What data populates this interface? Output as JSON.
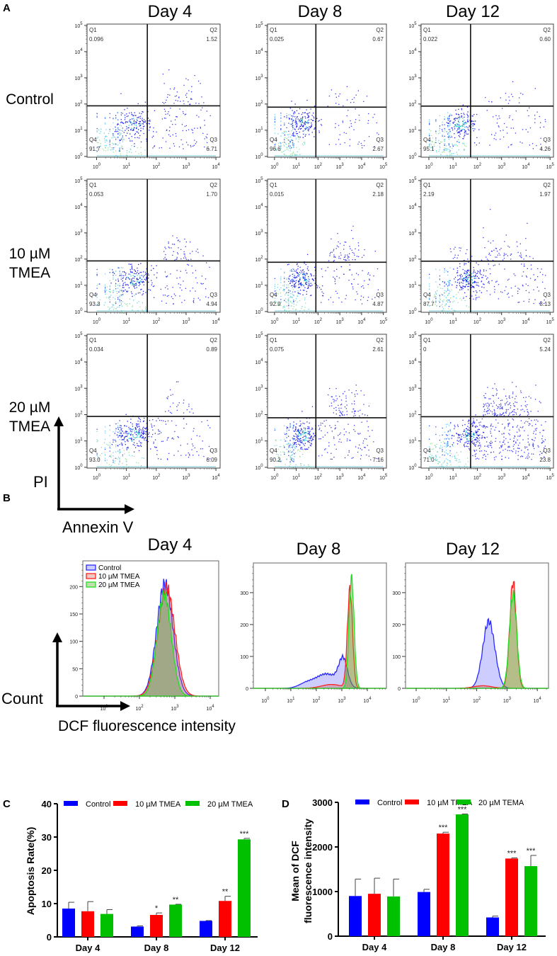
{
  "panels": {
    "A": "A",
    "B": "B",
    "C": "C",
    "D": "D"
  },
  "chart_data": [
    {
      "type": "scatter",
      "panel": "A",
      "days": [
        "Day 4",
        "Day 8",
        "Day 12"
      ],
      "row_labels": [
        [
          "Control"
        ],
        [
          "10 µM",
          "TMEA"
        ],
        [
          "20 µM",
          "TMEA"
        ]
      ],
      "xlabel": "Annexin V",
      "ylabel": "PI",
      "tick_base": "10",
      "y_tick_exponents": [
        "0",
        "1",
        "2",
        "3",
        "4",
        "5"
      ],
      "x_tick_exponents_by_day": [
        [
          "0",
          "1",
          "2",
          "3",
          "4"
        ],
        [
          "0",
          "1",
          "2",
          "3",
          "4",
          "5"
        ],
        [
          "0",
          "1",
          "2",
          "3",
          "4",
          "5"
        ]
      ],
      "quadrant_names": {
        "Q1": "Q1",
        "Q2": "Q2",
        "Q3": "Q3",
        "Q4": "Q4"
      },
      "gate_log10": [
        [
          1.7,
          1.93
        ],
        [
          1.9,
          1.88
        ],
        [
          1.72,
          1.92
        ]
      ],
      "plots": [
        {
          "day": "Day 4",
          "group": "Control",
          "Q1": "0.096",
          "Q2": "1.52",
          "Q3": "6.71",
          "Q4": "91.7"
        },
        {
          "day": "Day 8",
          "group": "Control",
          "Q1": "0.025",
          "Q2": "0.67",
          "Q3": "2.67",
          "Q4": "96.6"
        },
        {
          "day": "Day 12",
          "group": "Control",
          "Q1": "0.022",
          "Q2": "0.60",
          "Q3": "4.26",
          "Q4": "95.1"
        },
        {
          "day": "Day 4",
          "group": "10 µM TMEA",
          "Q1": "0.053",
          "Q2": "1.70",
          "Q3": "4.94",
          "Q4": "93.3"
        },
        {
          "day": "Day 8",
          "group": "10 µM TMEA",
          "Q1": "0.015",
          "Q2": "2.18",
          "Q3": "4.87",
          "Q4": "92.9"
        },
        {
          "day": "Day 12",
          "group": "10 µM TMEA",
          "Q1": "2.19",
          "Q2": "1.97",
          "Q3": "8.13",
          "Q4": "87.7"
        },
        {
          "day": "Day 4",
          "group": "20 µM TMEA",
          "Q1": "0.034",
          "Q2": "0.89",
          "Q3": "6.09",
          "Q4": "93.0"
        },
        {
          "day": "Day 8",
          "group": "20 µM TMEA",
          "Q1": "0.075",
          "Q2": "2.61",
          "Q3": "7.16",
          "Q4": "90.2"
        },
        {
          "day": "Day 12",
          "group": "20 µM TMEA",
          "Q1": "0",
          "Q2": "5.24",
          "Q3": "23.8",
          "Q4": "71.0"
        }
      ]
    },
    {
      "type": "area",
      "panel": "B",
      "days": [
        "Day 4",
        "Day 8",
        "Day 12"
      ],
      "xlabel": "DCF fluorescence intensity",
      "ylabel": "Count",
      "legend": [
        "Control",
        "10 µM TMEA",
        "20 µM TMEA"
      ],
      "legend_placement": "top-left",
      "colors": {
        "Control": "#2a2aff",
        "10 µM TMEA": "#ff2020",
        "20 µM TMEA": "#20e020"
      },
      "tick_base": "10",
      "x_tick_exponents_by_day": [
        [
          "1",
          "2",
          "3",
          "4"
        ],
        [
          "0",
          "1",
          "2",
          "3",
          "4"
        ],
        [
          "0",
          "1",
          "2",
          "3",
          "4"
        ]
      ],
      "y_ticks_by_day": [
        [
          "0",
          "50",
          "100",
          "150",
          "200"
        ],
        [
          "0",
          "100",
          "200",
          "300"
        ],
        [
          "0",
          "100",
          "200",
          "300"
        ]
      ],
      "ylim_by_day": [
        [
          0,
          247
        ],
        [
          0,
          393
        ],
        [
          0,
          393
        ]
      ],
      "xlim_log10_by_day": [
        [
          0.4,
          4.24
        ],
        [
          -0.47,
          4.75
        ],
        [
          -0.35,
          4.37
        ]
      ],
      "peaks_log10_height_sigma": [
        {
          "Control": [
            [
              2.72,
              205,
              0.23
            ]
          ],
          "10 µM TMEA": [
            [
              2.76,
              198,
              0.24
            ]
          ],
          "20 µM TMEA": [
            [
              2.7,
              185,
              0.2
            ]
          ]
        },
        {
          "Control": [
            [
              3.05,
              85,
              0.17
            ],
            [
              2.4,
              45,
              0.42
            ],
            [
              1.6,
              14,
              0.3
            ]
          ],
          "10 µM TMEA": [
            [
              3.32,
              310,
              0.1
            ],
            [
              2.6,
              12,
              0.4
            ]
          ],
          "20 µM TMEA": [
            [
              3.38,
              345,
              0.1
            ]
          ]
        },
        {
          "Control": [
            [
              2.4,
              210,
              0.2
            ]
          ],
          "10 µM TMEA": [
            [
              3.2,
              335,
              0.11
            ],
            [
              2.2,
              8,
              0.3
            ]
          ],
          "20 µM TMEA": [
            [
              3.2,
              295,
              0.12
            ]
          ]
        }
      ]
    },
    {
      "type": "bar",
      "panel": "C",
      "categories": [
        "Day 4",
        "Day 8",
        "Day 12"
      ],
      "ylabel": "Apoptosis Rate(%)",
      "ylim": [
        0,
        40
      ],
      "yticks": [
        "0",
        "10",
        "20",
        "30",
        "40"
      ],
      "legend_placement": "top",
      "series": [
        {
          "name": "Control",
          "color": "#0000ff",
          "values": [
            8.5,
            3.1,
            4.8
          ],
          "errors": [
            1.9,
            0.2,
            0.1
          ],
          "sig": [
            "",
            "",
            ""
          ]
        },
        {
          "name": "10 µM TMEA",
          "color": "#ff0000",
          "values": [
            7.7,
            6.6,
            10.8
          ],
          "errors": [
            2.9,
            0.6,
            1.4
          ],
          "sig": [
            "",
            "*",
            "**"
          ]
        },
        {
          "name": "20 µM TMEA",
          "color": "#00c000",
          "values": [
            6.9,
            9.7,
            29.3
          ],
          "errors": [
            1.3,
            0.1,
            0.3
          ],
          "sig": [
            "",
            "**",
            "***"
          ]
        }
      ]
    },
    {
      "type": "bar",
      "panel": "D",
      "categories": [
        "Day 4",
        "Day 8",
        "Day 12"
      ],
      "ylabel_lines": [
        "Mean of DCF",
        "fluorescence intensity"
      ],
      "ylim": [
        0,
        3000
      ],
      "yticks": [
        "0",
        "1000",
        "2000",
        "3000"
      ],
      "legend_placement": "top",
      "series": [
        {
          "name": "Control",
          "color": "#0000ff",
          "values": [
            900,
            990,
            420
          ],
          "errors": [
            380,
            60,
            30
          ],
          "sig": [
            "",
            "",
            ""
          ]
        },
        {
          "name": "10 µM TMEA",
          "color": "#ff0000",
          "values": [
            950,
            2300,
            1740
          ],
          "errors": [
            350,
            30,
            15
          ],
          "sig": [
            "",
            "***",
            "***"
          ]
        },
        {
          "name": "20 µM TEMA",
          "color": "#00c000",
          "values": [
            890,
            2730,
            1570
          ],
          "errors": [
            390,
            10,
            240
          ],
          "sig": [
            "",
            "***",
            "***"
          ]
        }
      ]
    }
  ]
}
